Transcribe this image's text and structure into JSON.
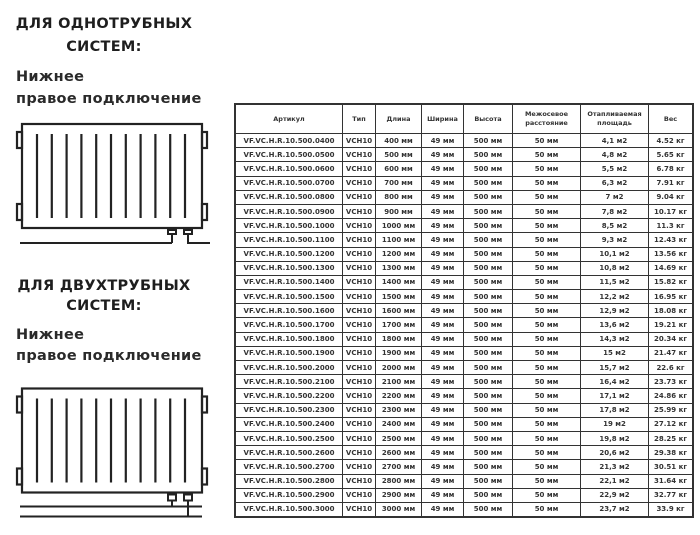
{
  "single_pipe": {
    "title_line1": "ДЛЯ ОДНОТРУБНЫХ",
    "title_line2": "СИСТЕМ:",
    "connection_line1": "Нижнее",
    "connection_line2": "правое подключение"
  },
  "two_pipe": {
    "title_line1": "ДЛЯ ДВУХТРУБНЫХ",
    "title_line2": "СИСТЕМ:",
    "connection_line1": "Нижнее",
    "connection_line2": "правое подключение"
  },
  "table": {
    "headers": [
      "Артикул",
      "Тип",
      "Длина",
      "Ширина",
      "Высота",
      "Межосевое расстояние",
      "Отапливаемая площадь",
      "Вес"
    ],
    "rows": [
      [
        "VF.VC.H.R.10.500.0400",
        "VCH10",
        "400 мм",
        "49 мм",
        "500 мм",
        "50 мм",
        "4,1 м2",
        "4.52 кг"
      ],
      [
        "VF.VC.H.R.10.500.0500",
        "VCH10",
        "500 мм",
        "49 мм",
        "500 мм",
        "50 мм",
        "4,8 м2",
        "5.65 кг"
      ],
      [
        "VF.VC.H.R.10.500.0600",
        "VCH10",
        "600 мм",
        "49 мм",
        "500 мм",
        "50 мм",
        "5,5 м2",
        "6.78 кг"
      ],
      [
        "VF.VC.H.R.10.500.0700",
        "VCH10",
        "700 мм",
        "49 мм",
        "500 мм",
        "50 мм",
        "6,3 м2",
        "7.91 кг"
      ],
      [
        "VF.VC.H.R.10.500.0800",
        "VCH10",
        "800 мм",
        "49 мм",
        "500 мм",
        "50 мм",
        "7 м2",
        "9.04 кг"
      ],
      [
        "VF.VC.H.R.10.500.0900",
        "VCH10",
        "900 мм",
        "49 мм",
        "500 мм",
        "50 мм",
        "7,8 м2",
        "10.17 кг"
      ],
      [
        "VF.VC.H.R.10.500.1000",
        "VCH10",
        "1000 мм",
        "49 мм",
        "500 мм",
        "50 мм",
        "8,5 м2",
        "11.3 кг"
      ],
      [
        "VF.VC.H.R.10.500.1100",
        "VCH10",
        "1100 мм",
        "49 мм",
        "500 мм",
        "50 мм",
        "9,3 м2",
        "12.43 кг"
      ],
      [
        "VF.VC.H.R.10.500.1200",
        "VCH10",
        "1200 мм",
        "49 мм",
        "500 мм",
        "50 мм",
        "10,1 м2",
        "13.56 кг"
      ],
      [
        "VF.VC.H.R.10.500.1300",
        "VCH10",
        "1300 мм",
        "49 мм",
        "500 мм",
        "50 мм",
        "10,8 м2",
        "14.69 кг"
      ],
      [
        "VF.VC.H.R.10.500.1400",
        "VCH10",
        "1400 мм",
        "49 мм",
        "500 мм",
        "50 мм",
        "11,5 м2",
        "15.82 кг"
      ],
      [
        "VF.VC.H.R.10.500.1500",
        "VCH10",
        "1500 мм",
        "49 мм",
        "500 мм",
        "50 мм",
        "12,2 м2",
        "16.95 кг"
      ],
      [
        "VF.VC.H.R.10.500.1600",
        "VCH10",
        "1600 мм",
        "49 мм",
        "500 мм",
        "50 мм",
        "12,9 м2",
        "18.08 кг"
      ],
      [
        "VF.VC.H.R.10.500.1700",
        "VCH10",
        "1700 мм",
        "49 мм",
        "500 мм",
        "50 мм",
        "13,6 м2",
        "19.21 кг"
      ],
      [
        "VF.VC.H.R.10.500.1800",
        "VCH10",
        "1800 мм",
        "49 мм",
        "500 мм",
        "50 мм",
        "14,3 м2",
        "20.34 кг"
      ],
      [
        "VF.VC.H.R.10.500.1900",
        "VCH10",
        "1900 мм",
        "49 мм",
        "500 мм",
        "50 мм",
        "15 м2",
        "21.47 кг"
      ],
      [
        "VF.VC.H.R.10.500.2000",
        "VCH10",
        "2000 мм",
        "49 мм",
        "500 мм",
        "50 мм",
        "15,7 м2",
        "22.6 кг"
      ],
      [
        "VF.VC.H.R.10.500.2100",
        "VCH10",
        "2100 мм",
        "49 мм",
        "500 мм",
        "50 мм",
        "16,4 м2",
        "23.73 кг"
      ],
      [
        "VF.VC.H.R.10.500.2200",
        "VCH10",
        "2200 мм",
        "49 мм",
        "500 мм",
        "50 мм",
        "17,1 м2",
        "24.86 кг"
      ],
      [
        "VF.VC.H.R.10.500.2300",
        "VCH10",
        "2300 мм",
        "49 мм",
        "500 мм",
        "50 мм",
        "17,8 м2",
        "25.99 кг"
      ],
      [
        "VF.VC.H.R.10.500.2400",
        "VCH10",
        "2400 мм",
        "49 мм",
        "500 мм",
        "50 мм",
        "19 м2",
        "27.12 кг"
      ],
      [
        "VF.VC.H.R.10.500.2500",
        "VCH10",
        "2500 мм",
        "49 мм",
        "500 мм",
        "50 мм",
        "19,8 м2",
        "28.25 кг"
      ],
      [
        "VF.VC.H.R.10.500.2600",
        "VCH10",
        "2600 мм",
        "49 мм",
        "500 мм",
        "50 мм",
        "20,6 м2",
        "29.38 кг"
      ],
      [
        "VF.VC.H.R.10.500.2700",
        "VCH10",
        "2700 мм",
        "49 мм",
        "500 мм",
        "50 мм",
        "21,3 м2",
        "30.51 кг"
      ],
      [
        "VF.VC.H.R.10.500.2800",
        "VCH10",
        "2800 мм",
        "49 мм",
        "500 мм",
        "50 мм",
        "22,1 м2",
        "31.64 кг"
      ],
      [
        "VF.VC.H.R.10.500.2900",
        "VCH10",
        "2900 мм",
        "49 мм",
        "500 мм",
        "50 мм",
        "22,9 м2",
        "32.77 кг"
      ],
      [
        "VF.VC.H.R.10.500.3000",
        "VCH10",
        "3000 мм",
        "49 мм",
        "500 мм",
        "50 мм",
        "23,7 м2",
        "33.9 кг"
      ]
    ]
  }
}
